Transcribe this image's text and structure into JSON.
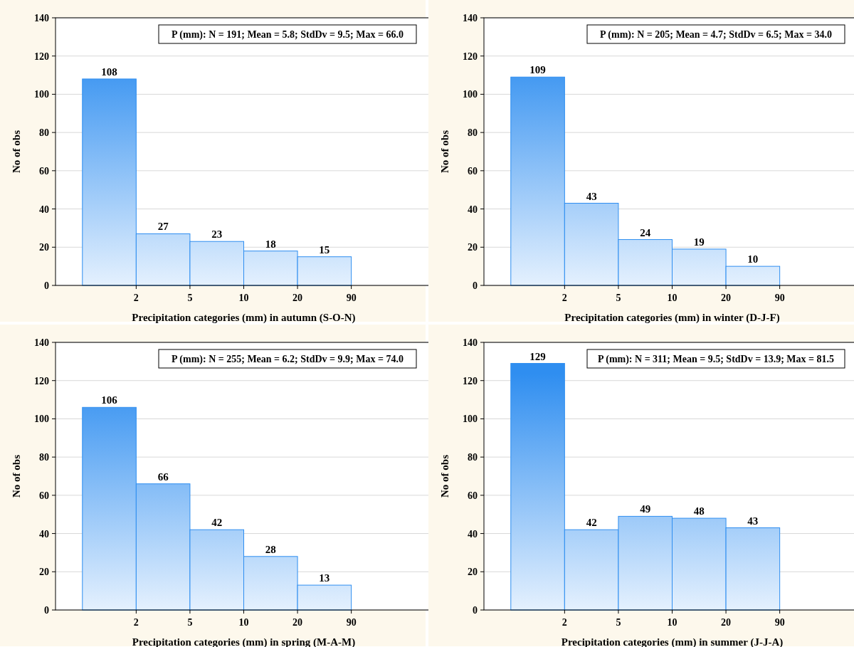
{
  "chart_data": [
    {
      "type": "bar",
      "xlabel": "Precipitation categories (mm) in autumn (S-O-N)",
      "ylabel": "No of obs",
      "categories": [
        "2",
        "5",
        "10",
        "20",
        "90"
      ],
      "values": [
        108,
        27,
        23,
        18,
        15
      ],
      "color": "#2f8ef0",
      "ylim": [
        0,
        140
      ],
      "yticks": [
        0,
        20,
        40,
        60,
        80,
        100,
        120,
        140
      ],
      "grid": "y",
      "data_labels": true,
      "annotations": [
        "P (mm): N = 191; Mean = 5.8; StdDv = 9.5; Max = 66.0"
      ]
    },
    {
      "type": "bar",
      "xlabel": "Precipitation categories (mm) in winter (D-J-F)",
      "ylabel": "No of obs",
      "categories": [
        "2",
        "5",
        "10",
        "20",
        "90"
      ],
      "values": [
        109,
        43,
        24,
        19,
        10
      ],
      "color": "#2f8ef0",
      "ylim": [
        0,
        140
      ],
      "yticks": [
        0,
        20,
        40,
        60,
        80,
        100,
        120,
        140
      ],
      "grid": "y",
      "data_labels": true,
      "annotations": [
        "P (mm): N = 205; Mean = 4.7; StdDv = 6.5; Max = 34.0"
      ]
    },
    {
      "type": "bar",
      "xlabel": "Precipitation categories (mm) in spring (M-A-M)",
      "ylabel": "No of obs",
      "categories": [
        "2",
        "5",
        "10",
        "20",
        "90"
      ],
      "values": [
        106,
        66,
        42,
        28,
        13
      ],
      "color": "#2f8ef0",
      "ylim": [
        0,
        140
      ],
      "yticks": [
        0,
        20,
        40,
        60,
        80,
        100,
        120,
        140
      ],
      "grid": "y",
      "data_labels": true,
      "annotations": [
        "P (mm): N = 255; Mean = 6.2; StdDv = 9.9; Max = 74.0"
      ]
    },
    {
      "type": "bar",
      "xlabel": "Precipitation categories (mm) in summer (J-J-A)",
      "ylabel": "No of obs",
      "categories": [
        "2",
        "5",
        "10",
        "20",
        "90"
      ],
      "values": [
        129,
        42,
        49,
        48,
        43
      ],
      "color": "#2f8ef0",
      "ylim": [
        0,
        140
      ],
      "yticks": [
        0,
        20,
        40,
        60,
        80,
        100,
        120,
        140
      ],
      "grid": "y",
      "data_labels": true,
      "annotations": [
        "P (mm): N = 311; Mean = 9.5; StdDv = 13.9; Max = 81.5"
      ]
    }
  ]
}
